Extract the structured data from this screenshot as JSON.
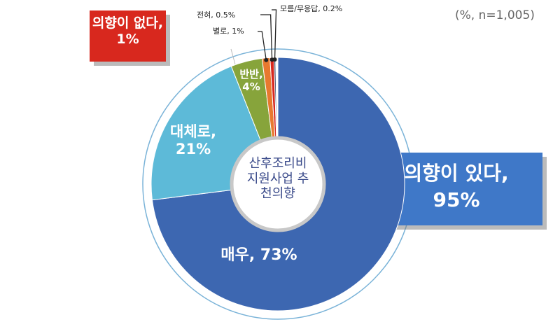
{
  "chart_data": {
    "type": "donut",
    "note": "(%, n=1,005)",
    "center_label": "산후조리비 지원사업 추천의향",
    "values": [
      73,
      21,
      4,
      1,
      0.5,
      0.2
    ],
    "value_labels": [
      "매우, 73%",
      "대체로, 21%",
      "반반, 4%",
      "별로, 1%",
      "전혀, 0.5%",
      "모름/무응답, 0.2%"
    ],
    "colors": [
      "#3d67b1",
      "#5dbad8",
      "#87a43b",
      "#e8792f",
      "#d8281e",
      "#2d3b58"
    ],
    "annotations": [
      "의향이 있다, 95%",
      "의향이 없다, 1%"
    ]
  }
}
